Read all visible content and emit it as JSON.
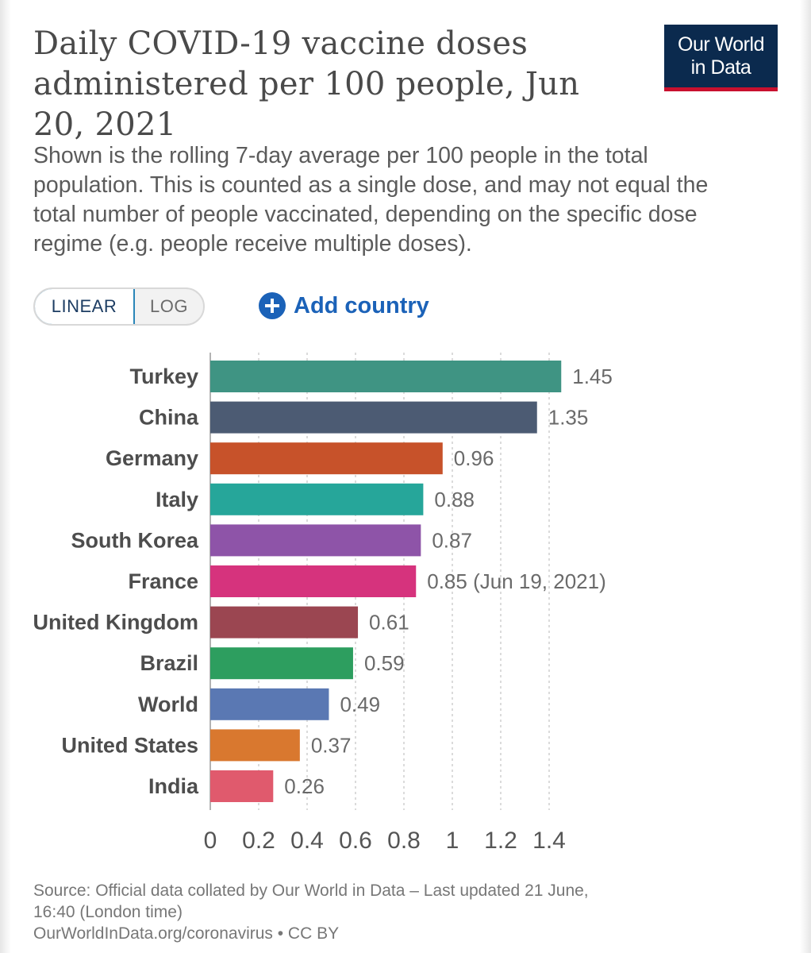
{
  "title": "Daily COVID-19 vaccine doses administered per 100 people, Jun 20, 2021",
  "logo": {
    "line1": "Our World",
    "line2": "in Data",
    "bg": "#0b2a4e",
    "accent": "#c8102e"
  },
  "subtitle": "Shown is the rolling 7-day average per 100 people in the total population. This is counted as a single dose, and may not equal the total number of people vaccinated, depending on the specific dose regime (e.g. people receive multiple doses).",
  "controls": {
    "scale_linear": "LINEAR",
    "scale_log": "LOG",
    "add_country": "Add country",
    "add_icon": "plus-circle-icon"
  },
  "chart_data": {
    "type": "bar",
    "orientation": "horizontal",
    "categories": [
      "Turkey",
      "China",
      "Germany",
      "Italy",
      "South Korea",
      "France",
      "United Kingdom",
      "Brazil",
      "World",
      "United States",
      "India"
    ],
    "values": [
      1.45,
      1.35,
      0.96,
      0.88,
      0.87,
      0.85,
      0.61,
      0.59,
      0.49,
      0.37,
      0.26
    ],
    "value_labels": [
      "1.45",
      "1.35",
      "0.96",
      "0.88",
      "0.87",
      "0.85 (Jun 19, 2021)",
      "0.61",
      "0.59",
      "0.49",
      "0.37",
      "0.26"
    ],
    "colors": [
      "#3f9483",
      "#4c5b73",
      "#c7522a",
      "#26a69a",
      "#8e54a8",
      "#d6337d",
      "#9b4651",
      "#2d9e5f",
      "#5a78b3",
      "#d9782f",
      "#e05a6d"
    ],
    "xticks": [
      0,
      0.2,
      0.4,
      0.6,
      0.8,
      1,
      1.2,
      1.4
    ],
    "xtick_labels": [
      "0",
      "0.2",
      "0.4",
      "0.6",
      "0.8",
      "1",
      "1.2",
      "1.4"
    ],
    "xlim": [
      0,
      1.45
    ],
    "grid": true
  },
  "source": {
    "line1": "Source: Official data collated by Our World in Data – Last updated 21 June,",
    "line2": "16:40 (London time)",
    "line3": "OurWorldInData.org/coronavirus • CC BY"
  }
}
